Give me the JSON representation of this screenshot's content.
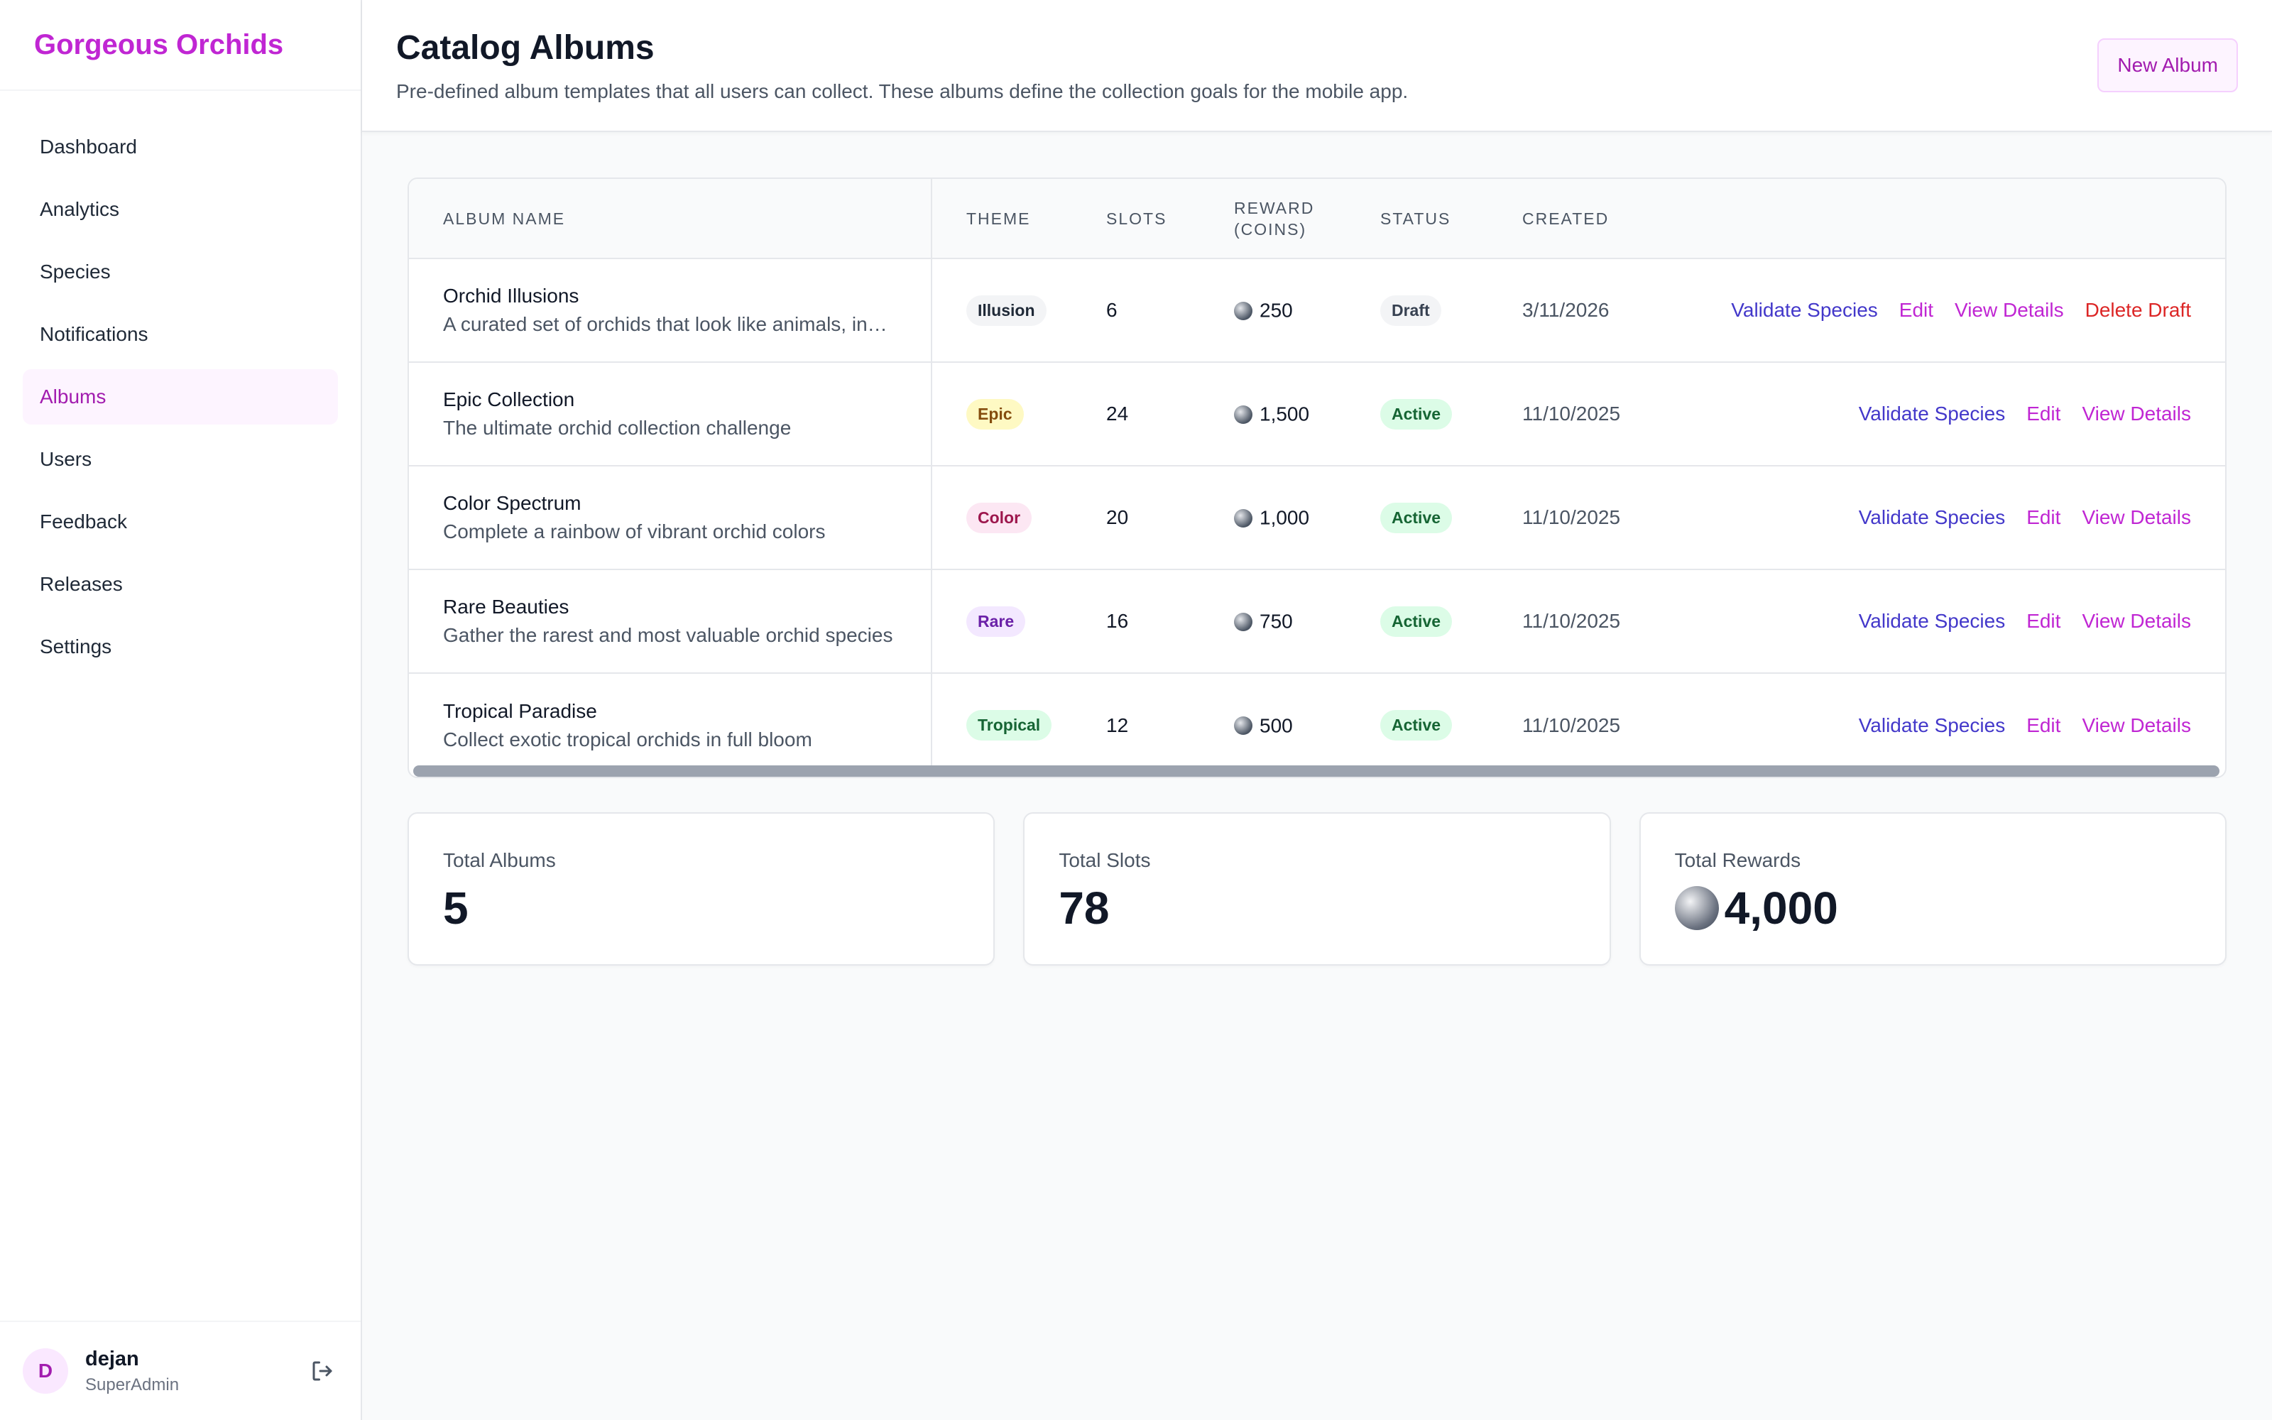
{
  "brand": "Gorgeous Orchids",
  "nav": [
    {
      "label": "Dashboard",
      "active": false
    },
    {
      "label": "Analytics",
      "active": false
    },
    {
      "label": "Species",
      "active": false
    },
    {
      "label": "Notifications",
      "active": false
    },
    {
      "label": "Albums",
      "active": true
    },
    {
      "label": "Users",
      "active": false
    },
    {
      "label": "Feedback",
      "active": false
    },
    {
      "label": "Releases",
      "active": false
    },
    {
      "label": "Settings",
      "active": false
    }
  ],
  "user": {
    "initial": "D",
    "name": "dejan",
    "role": "SuperAdmin",
    "logout_icon": "logout-icon"
  },
  "header": {
    "title": "Catalog Albums",
    "subtitle": "Pre-defined album templates that all users can collect. These albums define the collection goals for the mobile app.",
    "new_button": "New Album"
  },
  "table": {
    "columns": [
      "Album Name",
      "Theme",
      "Slots",
      "Reward (Coins)",
      "Status",
      "Created"
    ],
    "rows": [
      {
        "name": "Orchid Illusions",
        "desc": "A curated set of orchids that look like animals, insects, and faces",
        "theme": "Illusion",
        "slots": "6",
        "reward": "250",
        "status": "Draft",
        "created": "3/11/2026",
        "actions": [
          "Validate Species",
          "Edit",
          "View Details",
          "Delete Draft"
        ]
      },
      {
        "name": "Epic Collection",
        "desc": "The ultimate orchid collection challenge",
        "theme": "Epic",
        "slots": "24",
        "reward": "1,500",
        "status": "Active",
        "created": "11/10/2025",
        "actions": [
          "Validate Species",
          "Edit",
          "View Details"
        ]
      },
      {
        "name": "Color Spectrum",
        "desc": "Complete a rainbow of vibrant orchid colors",
        "theme": "Color",
        "slots": "20",
        "reward": "1,000",
        "status": "Active",
        "created": "11/10/2025",
        "actions": [
          "Validate Species",
          "Edit",
          "View Details"
        ]
      },
      {
        "name": "Rare Beauties",
        "desc": "Gather the rarest and most valuable orchid species",
        "theme": "Rare",
        "slots": "16",
        "reward": "750",
        "status": "Active",
        "created": "11/10/2025",
        "actions": [
          "Validate Species",
          "Edit",
          "View Details"
        ]
      },
      {
        "name": "Tropical Paradise",
        "desc": "Collect exotic tropical orchids in full bloom",
        "theme": "Tropical",
        "slots": "12",
        "reward": "500",
        "status": "Active",
        "created": "11/10/2025",
        "actions": [
          "Validate Species",
          "Edit",
          "View Details"
        ]
      }
    ]
  },
  "theme_colors": {
    "Illusion": {
      "bg": "#f3f4f6",
      "fg": "#1f2937"
    },
    "Epic": {
      "bg": "#fef9c3",
      "fg": "#854d0e"
    },
    "Color": {
      "bg": "#fce7f3",
      "fg": "#9d174d"
    },
    "Rare": {
      "bg": "#f3e8ff",
      "fg": "#6b21a8"
    },
    "Tropical": {
      "bg": "#dcfce7",
      "fg": "#166534"
    }
  },
  "status_colors": {
    "Draft": {
      "bg": "#f3f4f6",
      "fg": "#374151"
    },
    "Active": {
      "bg": "#dcfce7",
      "fg": "#166534"
    }
  },
  "stats": [
    {
      "label": "Total Albums",
      "value": "5",
      "coin": false
    },
    {
      "label": "Total Slots",
      "value": "78",
      "coin": false
    },
    {
      "label": "Total Rewards",
      "value": "4,000",
      "coin": true
    }
  ]
}
